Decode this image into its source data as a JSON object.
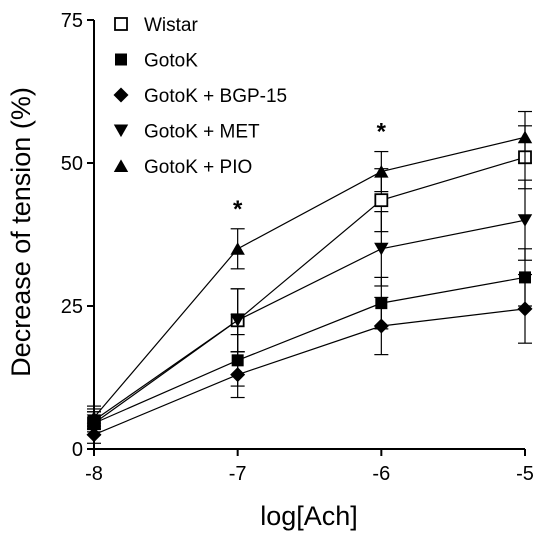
{
  "chart_data": {
    "type": "line",
    "xlabel": "log[Ach]",
    "ylabel": "Decrease of tension (%)",
    "xlim": [
      -8,
      -5
    ],
    "ylim": [
      0,
      75
    ],
    "x_ticks": [
      -8,
      -7,
      -6,
      -5
    ],
    "y_ticks": [
      0,
      25,
      50,
      75
    ],
    "x": [
      -8,
      -7,
      -6,
      -5
    ],
    "legend_position": "top-left",
    "grid": false,
    "series": [
      {
        "name": "Wistar",
        "marker": "square-open",
        "values": [
          4.5,
          22.5,
          43.5,
          51
        ],
        "error": [
          2,
          5.5,
          5.5,
          5.5
        ]
      },
      {
        "name": "GotoK",
        "marker": "square-filled",
        "values": [
          4.5,
          15.5,
          25.5,
          30
        ],
        "error": [
          2,
          4.5,
          4.5,
          5
        ]
      },
      {
        "name": "GotoK + BGP-15",
        "marker": "diamond-filled",
        "values": [
          2.5,
          13,
          21.5,
          24.5
        ],
        "error": [
          1.5,
          4,
          5,
          6
        ]
      },
      {
        "name": "GotoK + MET",
        "marker": "triangle-down-filled",
        "values": [
          5,
          22.5,
          35,
          40
        ],
        "error": [
          2,
          5.5,
          6.5,
          7
        ]
      },
      {
        "name": "GotoK + PIO",
        "marker": "triangle-up-filled",
        "values": [
          5.5,
          35,
          48.5,
          54.5
        ],
        "error": [
          2,
          3.5,
          3.5,
          4.5
        ]
      }
    ],
    "annotations": [
      {
        "text": "*",
        "x": -7
      },
      {
        "text": "*",
        "x": -6
      }
    ]
  }
}
